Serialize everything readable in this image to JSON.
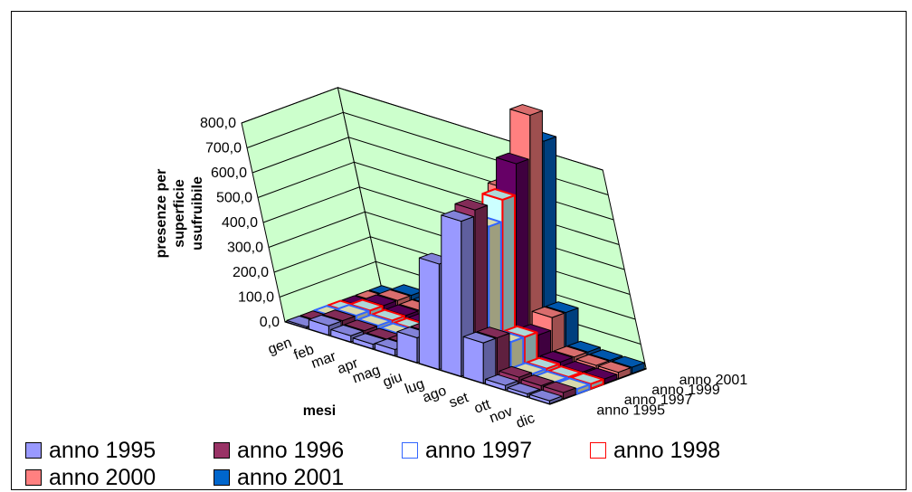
{
  "chart_data": {
    "type": "bar",
    "subtype": "3d-column",
    "ylabel": "presenze per superficie usufruibile",
    "xlabel": "mesi",
    "y_ticks": [
      "0,0",
      "100,0",
      "200,0",
      "300,0",
      "400,0",
      "500,0",
      "600,0",
      "700,0",
      "800,0"
    ],
    "ylim": [
      0,
      800
    ],
    "categories": [
      "gen",
      "feb",
      "mar",
      "apr",
      "mag",
      "giu",
      "lug",
      "ago",
      "set",
      "ott",
      "nov",
      "dic"
    ],
    "depth_labels": [
      "anno 1995",
      "anno 1997",
      "anno 1999",
      "anno 2001"
    ],
    "series": [
      {
        "name": "anno 1995",
        "color": "#9999ff",
        "values": [
          5,
          30,
          20,
          15,
          20,
          80,
          340,
          500,
          130,
          15,
          10,
          10
        ]
      },
      {
        "name": "anno 1996",
        "color": "#993366",
        "values": [
          5,
          30,
          20,
          15,
          20,
          80,
          280,
          520,
          130,
          25,
          20,
          20
        ]
      },
      {
        "name": "anno 1997",
        "color": "#ffffcc",
        "values": [
          5,
          30,
          20,
          15,
          20,
          80,
          250,
          450,
          100,
          20,
          15,
          15
        ]
      },
      {
        "name": "anno 1998",
        "color": "#ccffff",
        "values": [
          5,
          30,
          20,
          15,
          20,
          80,
          300,
          520,
          100,
          20,
          15,
          15
        ]
      },
      {
        "name": "anno 1999",
        "color": "#660066",
        "values": [
          5,
          30,
          20,
          15,
          20,
          100,
          400,
          620,
          90,
          25,
          15,
          15
        ]
      },
      {
        "name": "anno 2000",
        "color": "#ff8080",
        "values": [
          5,
          30,
          20,
          15,
          20,
          100,
          500,
          760,
          130,
          25,
          20,
          20
        ]
      },
      {
        "name": "anno 2001",
        "color": "#0066cc",
        "values": [
          5,
          30,
          20,
          15,
          20,
          100,
          460,
          660,
          130,
          25,
          20,
          20
        ]
      }
    ],
    "grid": true,
    "legend_position": "bottom"
  },
  "legend": [
    {
      "label": "anno 1995",
      "color": "#9999ff",
      "border": "#000000"
    },
    {
      "label": "anno 1996",
      "color": "#993366",
      "border": "#000000"
    },
    {
      "label": "anno 1997",
      "color": "#ffffff",
      "border": "#3366ff"
    },
    {
      "label": "anno 1998",
      "color": "#ffffff",
      "border": "#ff0000"
    },
    {
      "label": "anno 2000",
      "color": "#ff8080",
      "border": "#000000"
    },
    {
      "label": "anno 2001",
      "color": "#0066cc",
      "border": "#000000"
    }
  ],
  "colors": {
    "wall": "#ccffcc",
    "grid": "#000000"
  }
}
